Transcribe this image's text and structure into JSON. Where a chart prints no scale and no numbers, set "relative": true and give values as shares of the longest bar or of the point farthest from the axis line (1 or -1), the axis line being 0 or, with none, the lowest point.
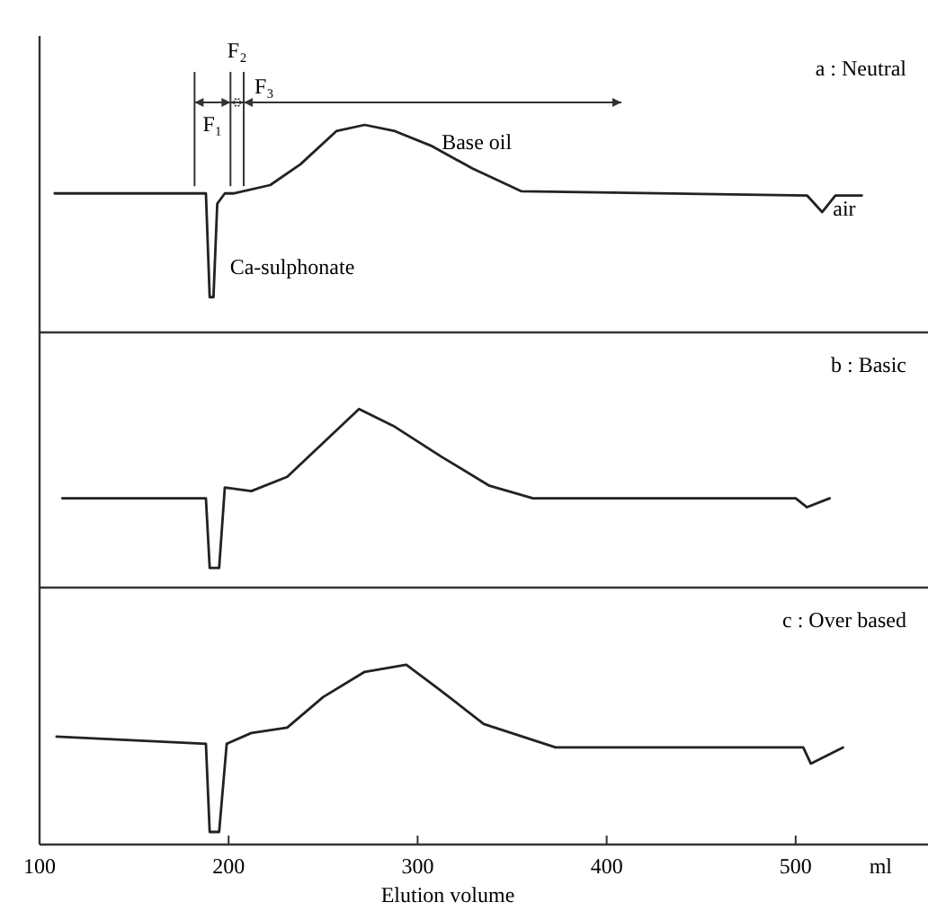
{
  "chart_data": [
    {
      "type": "line",
      "title": "a : Neutral",
      "relative": true,
      "xlim": [
        100,
        570
      ],
      "tick_labels": false,
      "series": [
        {
          "color": "#222222",
          "x": [
            108,
            184,
            188,
            190,
            192,
            194,
            198,
            203,
            222,
            238,
            257,
            272,
            288,
            307,
            329,
            355,
            506,
            514,
            521,
            535
          ],
          "values": [
            0.67,
            0.67,
            0.67,
            0.17,
            0.17,
            0.62,
            0.67,
            0.67,
            0.71,
            0.81,
            0.97,
            1,
            0.97,
            0.9,
            0.79,
            0.68,
            0.66,
            0.58,
            0.66,
            0.66
          ]
        }
      ],
      "ref_lines": [
        {
          "axis": "x",
          "value": 182,
          "label": "F₁"
        },
        {
          "axis": "x",
          "value": 201,
          "label": "F₂"
        },
        {
          "axis": "x",
          "value": 208,
          "label": "F₃"
        }
      ],
      "annotations": [
        {
          "text": "Base oil",
          "x": 307,
          "y": 0.9
        },
        {
          "text": "Ca-sulphonate",
          "x": 195,
          "y": 0.3
        },
        {
          "text": "air",
          "x": 514,
          "y": 0.58
        }
      ]
    },
    {
      "type": "line",
      "title": "b : Basic",
      "relative": true,
      "xlim": [
        100,
        570
      ],
      "tick_labels": false,
      "series": [
        {
          "color": "#222222",
          "x": [
            112,
            188,
            190,
            195,
            198,
            212,
            231,
            250,
            269,
            288,
            313,
            338,
            361,
            500,
            506,
            518
          ],
          "values": [
            0.5,
            0.5,
            0.11,
            0.11,
            0.56,
            0.54,
            0.62,
            0.81,
            1,
            0.9,
            0.73,
            0.57,
            0.5,
            0.5,
            0.45,
            0.5
          ]
        }
      ]
    },
    {
      "type": "line",
      "title": "c : Over based",
      "relative": true,
      "xlim": [
        100,
        570
      ],
      "xticks": [
        100,
        200,
        300,
        400,
        500
      ],
      "tick_labels": "x",
      "xlabel": "Elution volume",
      "series": [
        {
          "color": "#222222",
          "x": [
            109,
            188,
            190,
            195,
            199,
            212,
            231,
            250,
            272,
            294,
            313,
            335,
            373,
            504,
            508,
            525
          ],
          "values": [
            0.6,
            0.56,
            0.07,
            0.07,
            0.56,
            0.62,
            0.65,
            0.82,
            0.96,
            1,
            0.85,
            0.67,
            0.54,
            0.54,
            0.45,
            0.54
          ]
        }
      ],
      "annotations": [
        "ml"
      ]
    }
  ]
}
